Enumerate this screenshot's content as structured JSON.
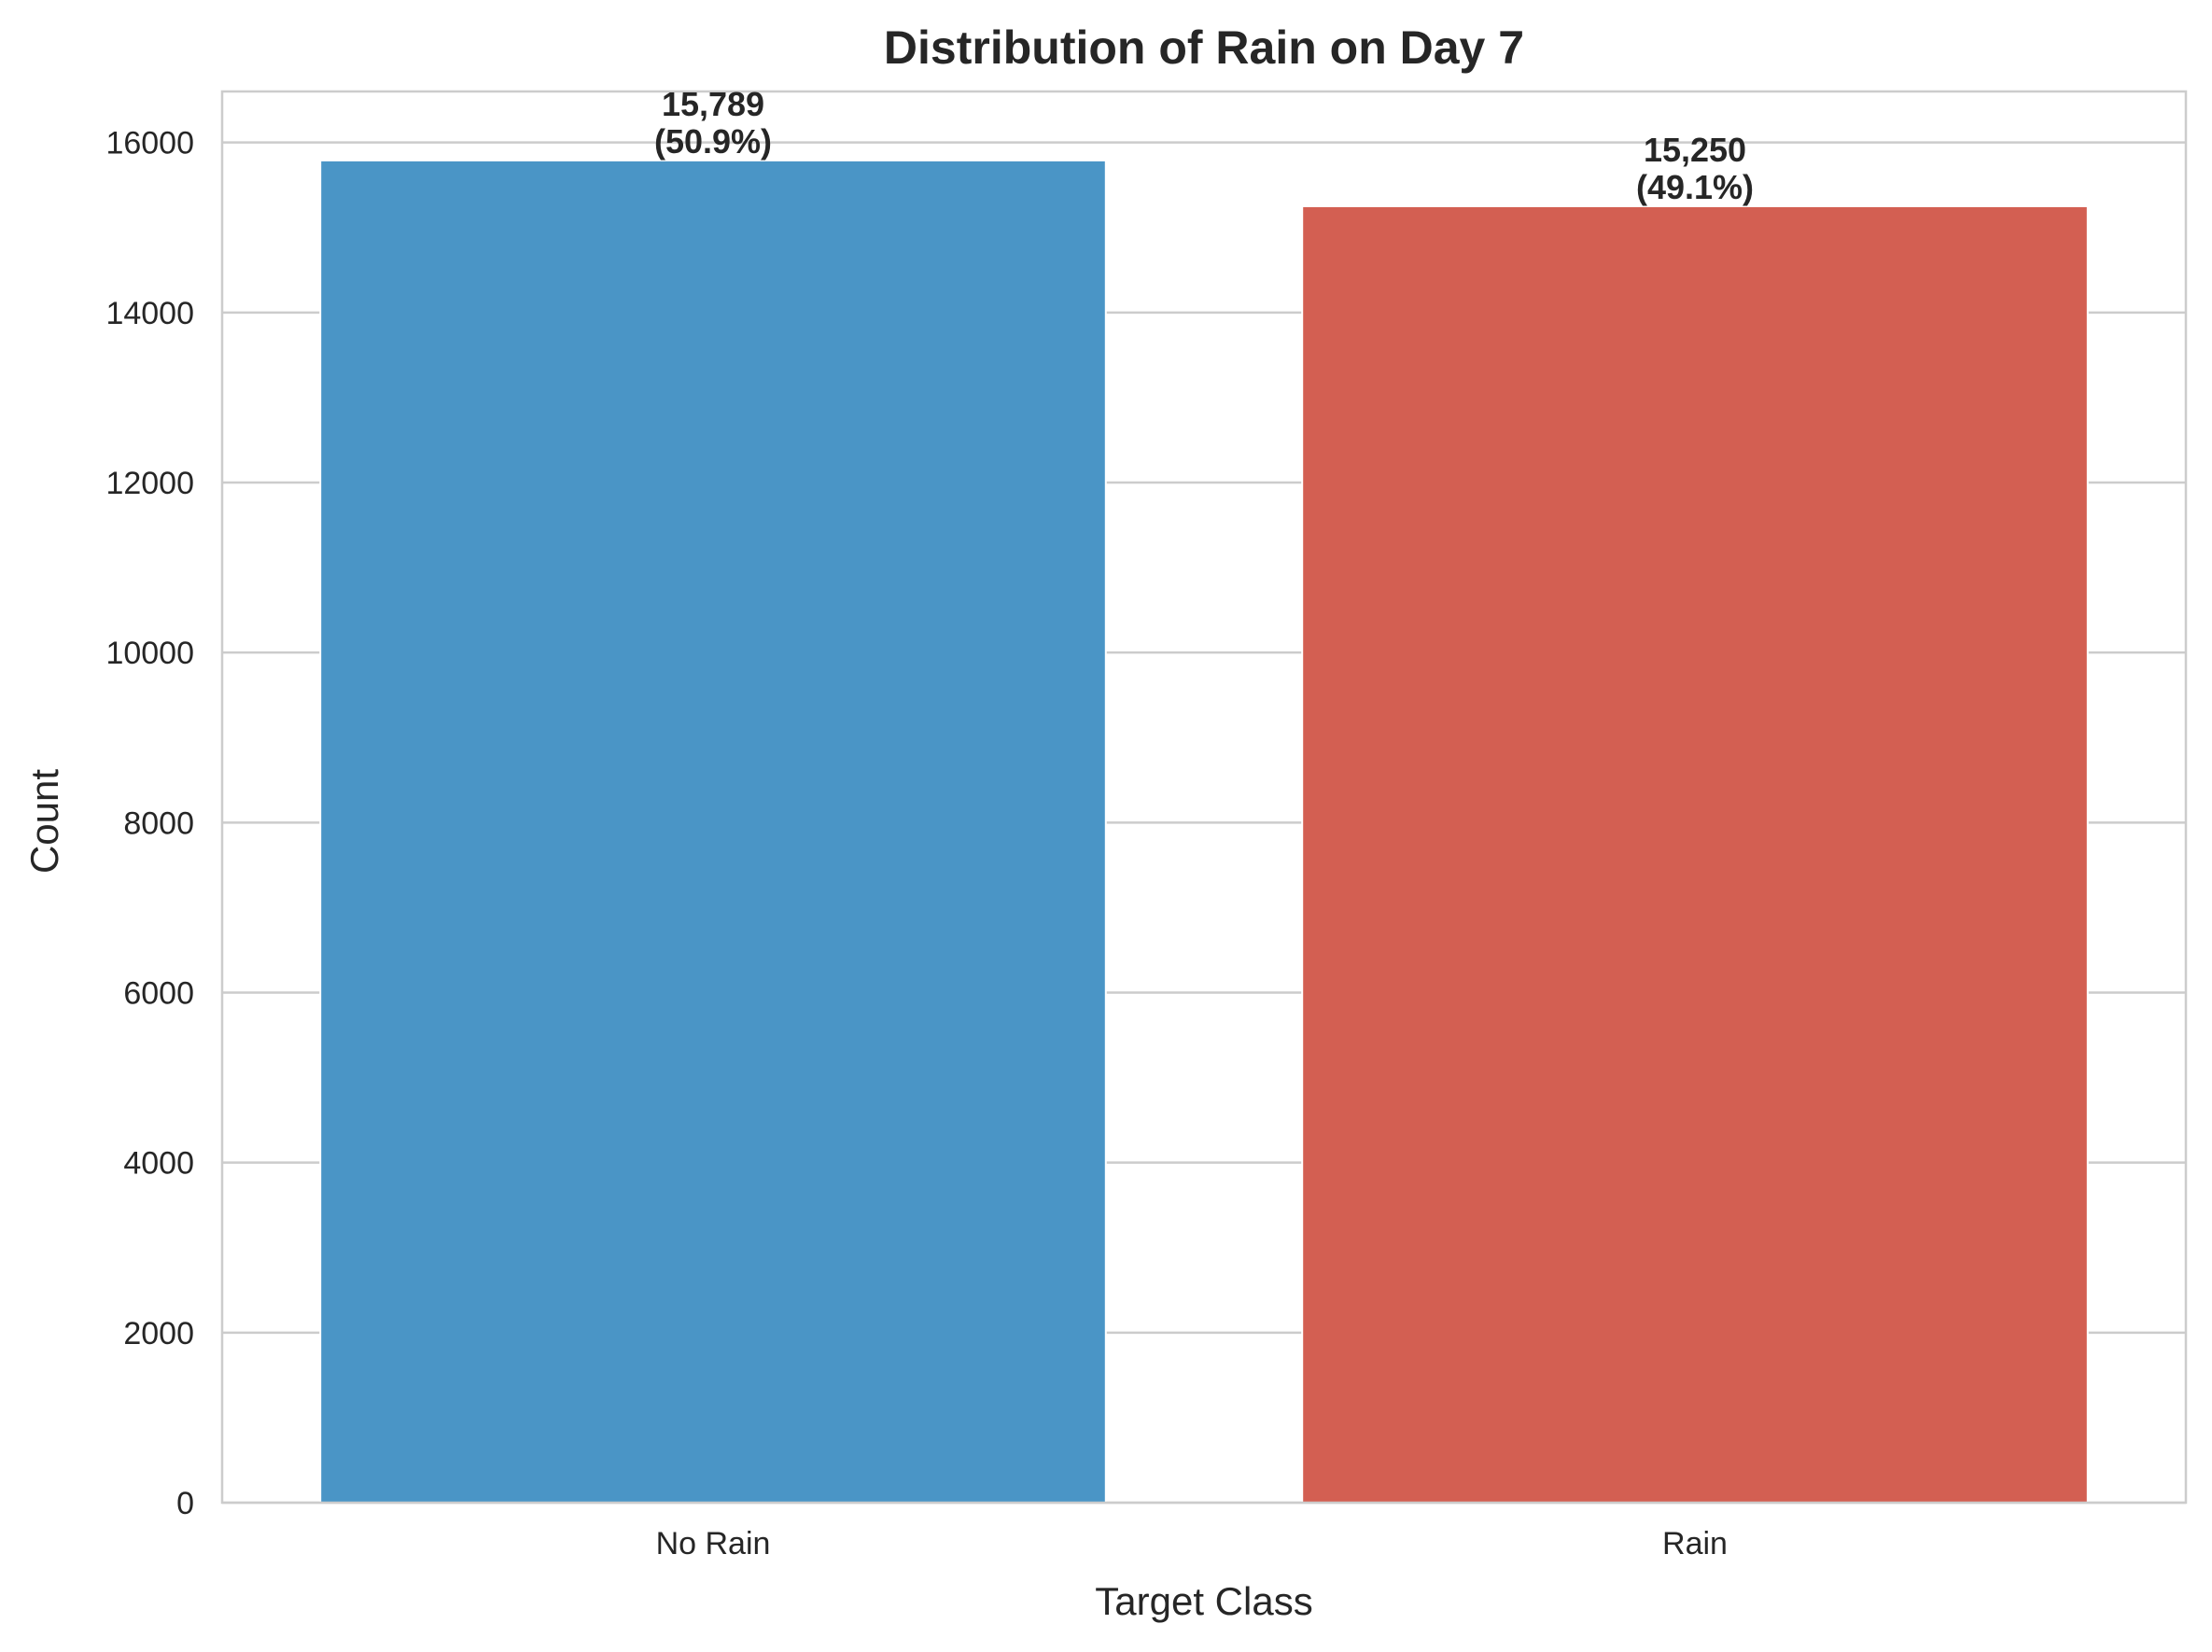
{
  "chart_data": {
    "type": "bar",
    "title": "Distribution of Rain on Day 7",
    "xlabel": "Target Class",
    "ylabel": "Count",
    "categories": [
      "No Rain",
      "Rain"
    ],
    "values": [
      15789,
      15250
    ],
    "data_labels": [
      [
        "15,789",
        "(50.9%)"
      ],
      [
        "15,250",
        "(49.1%)"
      ]
    ],
    "colors": [
      "#4a95c6",
      "#d35f52"
    ],
    "ylim": [
      0,
      16600
    ],
    "yticks": [
      0,
      2000,
      4000,
      6000,
      8000,
      10000,
      12000,
      14000,
      16000
    ],
    "ytick_labels": [
      "0",
      "2000",
      "4000",
      "6000",
      "8000",
      "10000",
      "12000",
      "14000",
      "16000"
    ],
    "grid": "horizontal",
    "legend": "none"
  }
}
